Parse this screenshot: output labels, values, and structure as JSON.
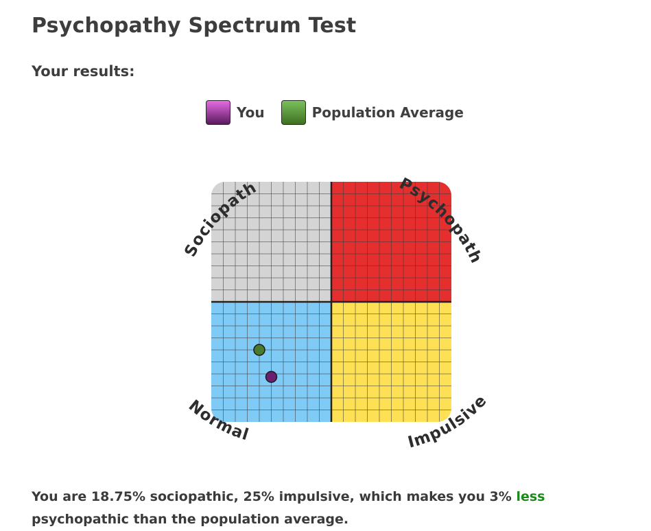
{
  "page": {
    "title": "Psychopathy Spectrum Test",
    "results_heading": "Your results:"
  },
  "legend": {
    "items": [
      {
        "label": "You",
        "color_top": "#e56be3",
        "color_bottom": "#5a1a5c"
      },
      {
        "label": "Population Average",
        "color_top": "#7ac05a",
        "color_bottom": "#3f6f22"
      }
    ]
  },
  "chart_data": {
    "type": "scatter",
    "xlabel": "impulsive",
    "ylabel": "sociopathic",
    "xlim": [
      0,
      100
    ],
    "ylim": [
      0,
      100
    ],
    "grid": true,
    "grid_divisions": 20,
    "quadrants": [
      {
        "label": "Sociopath",
        "position": "top-left",
        "color": "#d4d4d4"
      },
      {
        "label": "Psychopath",
        "position": "top-right",
        "color": "#e52e2e"
      },
      {
        "label": "Normal",
        "position": "bottom-left",
        "color": "#80cbf5"
      },
      {
        "label": "Impulsive",
        "position": "bottom-right",
        "color": "#fee055"
      }
    ],
    "points": [
      {
        "name": "Population Average",
        "x": 20,
        "y": 30,
        "color": "#4a7a2c"
      },
      {
        "name": "You",
        "x": 25,
        "y": 18.75,
        "color": "#6b1f6e"
      }
    ]
  },
  "summary": {
    "prefix": "You are 18.75% sociopathic, 25% impulsive, which makes you 3% ",
    "comparison": "less",
    "suffix": " psychopathic than the population average."
  }
}
